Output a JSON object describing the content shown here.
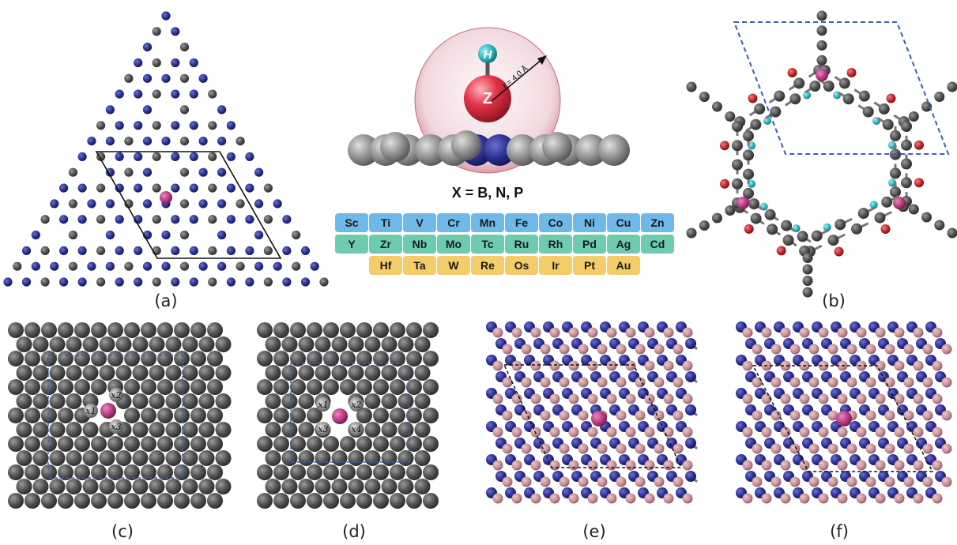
{
  "panel_labels": [
    "(a)",
    "(b)",
    "(c)",
    "(d)",
    "(e)",
    "(f)"
  ],
  "center": {
    "h_label": "H",
    "z_label": "Z",
    "radius_label": "r = 4.0 Å",
    "formula": "X = B, N, P"
  },
  "periodic_table": [
    [
      "Sc",
      "Ti",
      "V",
      "Cr",
      "Mn",
      "Fe",
      "Co",
      "Ni",
      "Cu",
      "Zn"
    ],
    [
      "Y",
      "Zr",
      "Nb",
      "Mo",
      "Tc",
      "Ru",
      "Rh",
      "Pd",
      "Ag",
      "Cd"
    ],
    [
      "Hf",
      "Ta",
      "W",
      "Re",
      "Os",
      "Ir",
      "Pt",
      "Au"
    ]
  ],
  "site_labels_c": [
    "x1",
    "x2",
    "x3"
  ],
  "site_labels_d": [
    "x1",
    "x2",
    "x3",
    "x4"
  ],
  "colors": {
    "row1": "#6fb9e8",
    "row2": "#6fcbb0",
    "row3": "#f5cc6a",
    "carbon": "#4a4a4a",
    "nitrogen": "#2a2f8f",
    "boron": "#c98f97",
    "metal": "#b8397f",
    "oxygen": "#c0262b",
    "hydrogen": "#2bb5c0",
    "sphere": "#d9334a",
    "cell_dash": "#3f5bb5"
  }
}
